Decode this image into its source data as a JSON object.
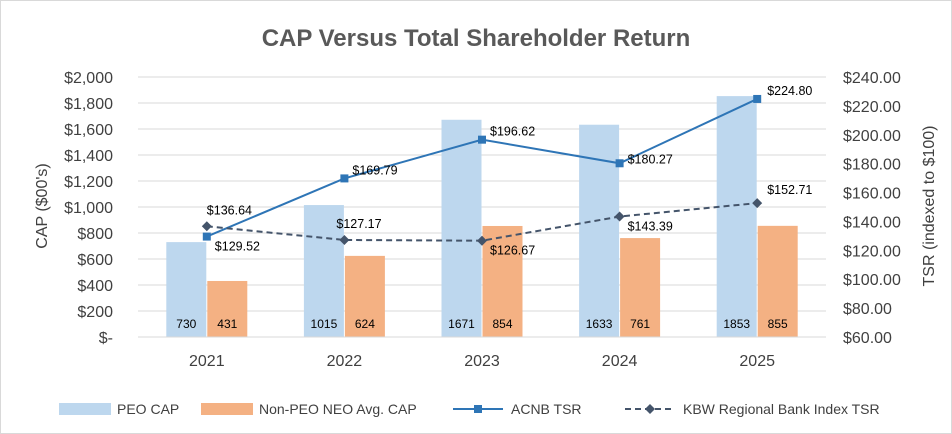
{
  "chart_data": {
    "type": "bar",
    "title": "CAP Versus Total Shareholder Return",
    "categories": [
      "2021",
      "2022",
      "2023",
      "2024",
      "2025"
    ],
    "ylabel_left": "CAP ($00's)",
    "ylabel_right": "TSR (indexed to $100)",
    "ylim_left": [
      0,
      2000
    ],
    "ylim_right": [
      60,
      240
    ],
    "left_ticks": [
      {
        "value": 0,
        "label": "$-"
      },
      {
        "value": 200,
        "label": "$200"
      },
      {
        "value": 400,
        "label": "$400"
      },
      {
        "value": 600,
        "label": "$600"
      },
      {
        "value": 800,
        "label": "$800"
      },
      {
        "value": 1000,
        "label": "$1,000"
      },
      {
        "value": 1200,
        "label": "$1,200"
      },
      {
        "value": 1400,
        "label": "$1,400"
      },
      {
        "value": 1600,
        "label": "$1,600"
      },
      {
        "value": 1800,
        "label": "$1,800"
      },
      {
        "value": 2000,
        "label": "$2,000"
      }
    ],
    "right_ticks": [
      {
        "value": 60,
        "label": "$60.00"
      },
      {
        "value": 80,
        "label": "$80.00"
      },
      {
        "value": 100,
        "label": "$100.00"
      },
      {
        "value": 120,
        "label": "$120.00"
      },
      {
        "value": 140,
        "label": "$140.00"
      },
      {
        "value": 160,
        "label": "$160.00"
      },
      {
        "value": 180,
        "label": "$180.00"
      },
      {
        "value": 200,
        "label": "$200.00"
      },
      {
        "value": 220,
        "label": "$220.00"
      },
      {
        "value": 240,
        "label": "$240.00"
      }
    ],
    "bar_series": [
      {
        "name": "PEO CAP",
        "color": "#bdd7ee",
        "values": [
          730,
          1015,
          1671,
          1633,
          1853
        ],
        "labels": [
          "730",
          "1015",
          "1671",
          "1633",
          "1853"
        ]
      },
      {
        "name": "Non-PEO NEO Avg. CAP",
        "color": "#f4b183",
        "values": [
          431,
          624,
          854,
          761,
          855
        ],
        "labels": [
          "431",
          "624",
          "854",
          "761",
          "855"
        ]
      }
    ],
    "line_series": [
      {
        "name": "ACNB TSR",
        "color": "#2e75b6",
        "dashed": false,
        "marker": "square",
        "values": [
          129.52,
          169.79,
          196.62,
          180.27,
          224.8
        ],
        "labels": [
          "$129.52",
          "$169.79",
          "$196.62",
          "$180.27",
          "$224.80"
        ]
      },
      {
        "name": "KBW Regional Bank Index TSR",
        "color": "#44546a",
        "dashed": true,
        "marker": "diamond",
        "values": [
          136.64,
          127.17,
          126.67,
          143.39,
          152.71
        ],
        "labels": [
          "$136.64",
          "$127.17",
          "$126.67",
          "$143.39",
          "$152.71"
        ]
      }
    ],
    "grid": true,
    "legend_position": "bottom"
  }
}
